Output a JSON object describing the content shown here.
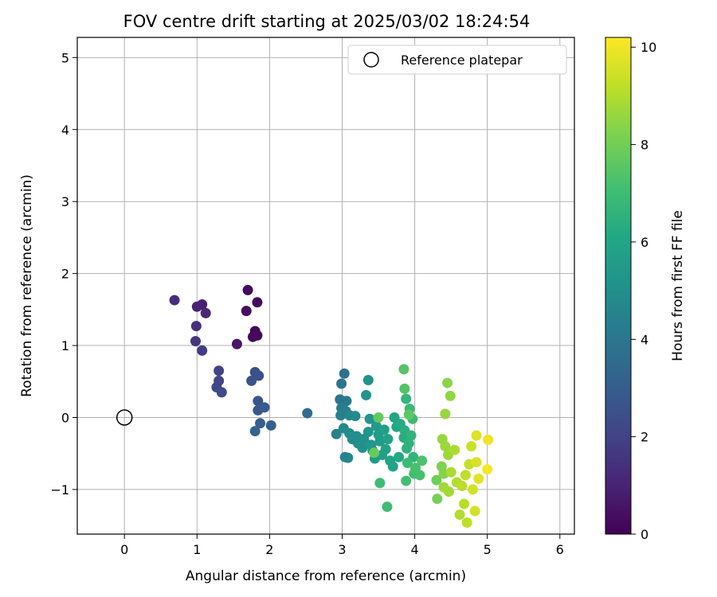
{
  "chart_data": {
    "type": "scatter",
    "title": "FOV centre drift starting at 2025/03/02 18:24:54",
    "xlabel": "Angular distance from reference (arcmin)",
    "ylabel": "Rotation from reference (arcmin)",
    "xlim": [
      -0.65,
      6.2
    ],
    "ylim": [
      -1.62,
      5.28
    ],
    "xticks": [
      0,
      1,
      2,
      3,
      4,
      5,
      6
    ],
    "xtick_labels": [
      "0",
      "1",
      "2",
      "3",
      "4",
      "5",
      "6"
    ],
    "yticks": [
      -1,
      0,
      1,
      2,
      3,
      4,
      5
    ],
    "ytick_labels": [
      "−1",
      "0",
      "1",
      "2",
      "3",
      "4",
      "5"
    ],
    "grid": true,
    "legend": {
      "placement": "upper right",
      "entries": [
        "Reference platepar"
      ]
    },
    "reference_point": {
      "x": 0,
      "y": 0,
      "marker": "hollow circle",
      "color": "#000000"
    },
    "colorbar": {
      "label": "Hours from first FF file",
      "range": [
        0,
        10.2
      ],
      "ticks": [
        0,
        2,
        4,
        6,
        8,
        10
      ],
      "tick_labels": [
        "0",
        "2",
        "4",
        "6",
        "8",
        "10"
      ],
      "colormap": "viridis"
    },
    "points": [
      {
        "x": 1.77,
        "y": 1.12,
        "h": 0.1
      },
      {
        "x": 1.83,
        "y": 1.14,
        "h": 0.2
      },
      {
        "x": 1.8,
        "y": 1.2,
        "h": 0.2
      },
      {
        "x": 1.7,
        "y": 1.77,
        "h": 0.3
      },
      {
        "x": 1.83,
        "y": 1.6,
        "h": 0.3
      },
      {
        "x": 1.68,
        "y": 1.48,
        "h": 0.4
      },
      {
        "x": 1.55,
        "y": 1.02,
        "h": 0.6
      },
      {
        "x": 1.07,
        "y": 1.57,
        "h": 0.9
      },
      {
        "x": 1.0,
        "y": 1.54,
        "h": 1.0
      },
      {
        "x": 1.12,
        "y": 1.45,
        "h": 1.1
      },
      {
        "x": 0.69,
        "y": 1.63,
        "h": 1.3
      },
      {
        "x": 0.99,
        "y": 1.27,
        "h": 1.4
      },
      {
        "x": 0.98,
        "y": 1.06,
        "h": 1.6
      },
      {
        "x": 1.07,
        "y": 0.93,
        "h": 1.8
      },
      {
        "x": 1.3,
        "y": 0.65,
        "h": 2.0
      },
      {
        "x": 1.3,
        "y": 0.51,
        "h": 2.1
      },
      {
        "x": 1.27,
        "y": 0.42,
        "h": 2.2
      },
      {
        "x": 1.34,
        "y": 0.35,
        "h": 2.3
      },
      {
        "x": 1.8,
        "y": 0.63,
        "h": 2.4
      },
      {
        "x": 1.85,
        "y": 0.58,
        "h": 2.5
      },
      {
        "x": 1.75,
        "y": 0.51,
        "h": 2.6
      },
      {
        "x": 1.84,
        "y": 0.23,
        "h": 2.7
      },
      {
        "x": 1.84,
        "y": 0.1,
        "h": 2.8
      },
      {
        "x": 1.93,
        "y": 0.14,
        "h": 2.9
      },
      {
        "x": 1.87,
        "y": -0.08,
        "h": 3.0
      },
      {
        "x": 2.02,
        "y": -0.11,
        "h": 3.1
      },
      {
        "x": 1.8,
        "y": -0.19,
        "h": 3.2
      },
      {
        "x": 2.52,
        "y": 0.06,
        "h": 3.6
      },
      {
        "x": 3.03,
        "y": 0.61,
        "h": 3.8
      },
      {
        "x": 2.99,
        "y": 0.47,
        "h": 3.9
      },
      {
        "x": 2.97,
        "y": 0.25,
        "h": 4.0
      },
      {
        "x": 3.06,
        "y": 0.23,
        "h": 4.1
      },
      {
        "x": 2.99,
        "y": 0.13,
        "h": 4.2
      },
      {
        "x": 3.05,
        "y": 0.09,
        "h": 4.3
      },
      {
        "x": 2.98,
        "y": 0.03,
        "h": 4.4
      },
      {
        "x": 2.92,
        "y": -0.23,
        "h": 4.5
      },
      {
        "x": 3.04,
        "y": -0.55,
        "h": 4.6
      },
      {
        "x": 3.08,
        "y": -0.56,
        "h": 4.6
      },
      {
        "x": 3.1,
        "y": 0.03,
        "h": 4.7
      },
      {
        "x": 3.18,
        "y": 0.02,
        "h": 4.8
      },
      {
        "x": 3.02,
        "y": -0.15,
        "h": 4.8
      },
      {
        "x": 3.1,
        "y": -0.22,
        "h": 4.9
      },
      {
        "x": 3.14,
        "y": -0.3,
        "h": 4.9
      },
      {
        "x": 3.22,
        "y": -0.36,
        "h": 5.0
      },
      {
        "x": 3.2,
        "y": -0.26,
        "h": 5.0
      },
      {
        "x": 3.28,
        "y": -0.42,
        "h": 5.1
      },
      {
        "x": 3.3,
        "y": -0.3,
        "h": 5.1
      },
      {
        "x": 3.36,
        "y": 0.52,
        "h": 5.2
      },
      {
        "x": 3.33,
        "y": 0.31,
        "h": 5.2
      },
      {
        "x": 3.38,
        "y": -0.02,
        "h": 5.3
      },
      {
        "x": 3.36,
        "y": -0.2,
        "h": 5.3
      },
      {
        "x": 3.4,
        "y": -0.38,
        "h": 5.4
      },
      {
        "x": 3.42,
        "y": -0.46,
        "h": 5.4
      },
      {
        "x": 3.45,
        "y": -0.57,
        "h": 5.5
      },
      {
        "x": 3.47,
        "y": -0.12,
        "h": 5.5
      },
      {
        "x": 3.5,
        "y": -0.24,
        "h": 5.6
      },
      {
        "x": 3.52,
        "y": -0.33,
        "h": 5.6
      },
      {
        "x": 3.55,
        "y": -0.52,
        "h": 5.7
      },
      {
        "x": 3.58,
        "y": -0.17,
        "h": 5.7
      },
      {
        "x": 3.6,
        "y": -0.44,
        "h": 5.8
      },
      {
        "x": 3.63,
        "y": -0.3,
        "h": 5.8
      },
      {
        "x": 3.66,
        "y": -0.6,
        "h": 5.9
      },
      {
        "x": 3.7,
        "y": -0.68,
        "h": 5.9
      },
      {
        "x": 3.72,
        "y": 0.0,
        "h": 6.0
      },
      {
        "x": 3.75,
        "y": -0.13,
        "h": 6.0
      },
      {
        "x": 3.78,
        "y": -0.55,
        "h": 6.1
      },
      {
        "x": 3.8,
        "y": -0.09,
        "h": 6.2
      },
      {
        "x": 3.85,
        "y": -0.28,
        "h": 6.3
      },
      {
        "x": 3.86,
        "y": -0.18,
        "h": 6.4
      },
      {
        "x": 3.89,
        "y": -0.43,
        "h": 6.5
      },
      {
        "x": 3.92,
        "y": -0.36,
        "h": 6.5
      },
      {
        "x": 3.95,
        "y": -0.25,
        "h": 6.6
      },
      {
        "x": 3.98,
        "y": -0.55,
        "h": 6.6
      },
      {
        "x": 3.88,
        "y": 0.26,
        "h": 6.7
      },
      {
        "x": 3.93,
        "y": 0.12,
        "h": 6.8
      },
      {
        "x": 3.97,
        "y": -0.02,
        "h": 6.9
      },
      {
        "x": 3.9,
        "y": -0.63,
        "h": 6.9
      },
      {
        "x": 3.52,
        "y": -0.91,
        "h": 7.0
      },
      {
        "x": 3.62,
        "y": -1.24,
        "h": 7.0
      },
      {
        "x": 3.88,
        "y": -0.88,
        "h": 7.1
      },
      {
        "x": 3.99,
        "y": -0.78,
        "h": 7.1
      },
      {
        "x": 4.01,
        "y": -0.7,
        "h": 7.2
      },
      {
        "x": 4.07,
        "y": -0.8,
        "h": 7.2
      },
      {
        "x": 4.1,
        "y": -0.6,
        "h": 7.3
      },
      {
        "x": 3.86,
        "y": 0.4,
        "h": 7.4
      },
      {
        "x": 3.85,
        "y": 0.67,
        "h": 7.5
      },
      {
        "x": 3.92,
        "y": 0.04,
        "h": 7.6
      },
      {
        "x": 3.5,
        "y": 0.0,
        "h": 7.7
      },
      {
        "x": 3.44,
        "y": -0.49,
        "h": 7.8
      },
      {
        "x": 4.3,
        "y": -0.87,
        "h": 8.0
      },
      {
        "x": 4.31,
        "y": -1.13,
        "h": 8.1
      },
      {
        "x": 4.37,
        "y": -0.68,
        "h": 8.2
      },
      {
        "x": 4.4,
        "y": -0.78,
        "h": 8.3
      },
      {
        "x": 4.45,
        "y": 0.48,
        "h": 8.4
      },
      {
        "x": 4.49,
        "y": 0.3,
        "h": 8.5
      },
      {
        "x": 4.42,
        "y": 0.05,
        "h": 8.6
      },
      {
        "x": 4.38,
        "y": -0.3,
        "h": 8.6
      },
      {
        "x": 4.42,
        "y": -0.4,
        "h": 8.7
      },
      {
        "x": 4.46,
        "y": -0.52,
        "h": 8.7
      },
      {
        "x": 4.4,
        "y": -0.97,
        "h": 8.8
      },
      {
        "x": 4.47,
        "y": -1.03,
        "h": 8.8
      },
      {
        "x": 4.5,
        "y": -0.76,
        "h": 8.9
      },
      {
        "x": 4.55,
        "y": -0.45,
        "h": 8.9
      },
      {
        "x": 4.58,
        "y": -0.9,
        "h": 9.0
      },
      {
        "x": 4.62,
        "y": -1.35,
        "h": 9.0
      },
      {
        "x": 4.65,
        "y": -0.95,
        "h": 9.1
      },
      {
        "x": 4.68,
        "y": -1.2,
        "h": 9.1
      },
      {
        "x": 4.7,
        "y": -0.8,
        "h": 9.2
      },
      {
        "x": 4.72,
        "y": -1.46,
        "h": 9.2
      },
      {
        "x": 4.75,
        "y": -0.65,
        "h": 9.3
      },
      {
        "x": 4.78,
        "y": -0.4,
        "h": 9.4
      },
      {
        "x": 4.8,
        "y": -1.0,
        "h": 9.5
      },
      {
        "x": 4.83,
        "y": -1.3,
        "h": 9.5
      },
      {
        "x": 4.85,
        "y": -0.62,
        "h": 9.6
      },
      {
        "x": 4.85,
        "y": -0.25,
        "h": 9.7
      },
      {
        "x": 4.88,
        "y": -0.85,
        "h": 9.8
      },
      {
        "x": 5.01,
        "y": -0.31,
        "h": 10.0
      },
      {
        "x": 5.0,
        "y": -0.72,
        "h": 10.1
      }
    ]
  }
}
